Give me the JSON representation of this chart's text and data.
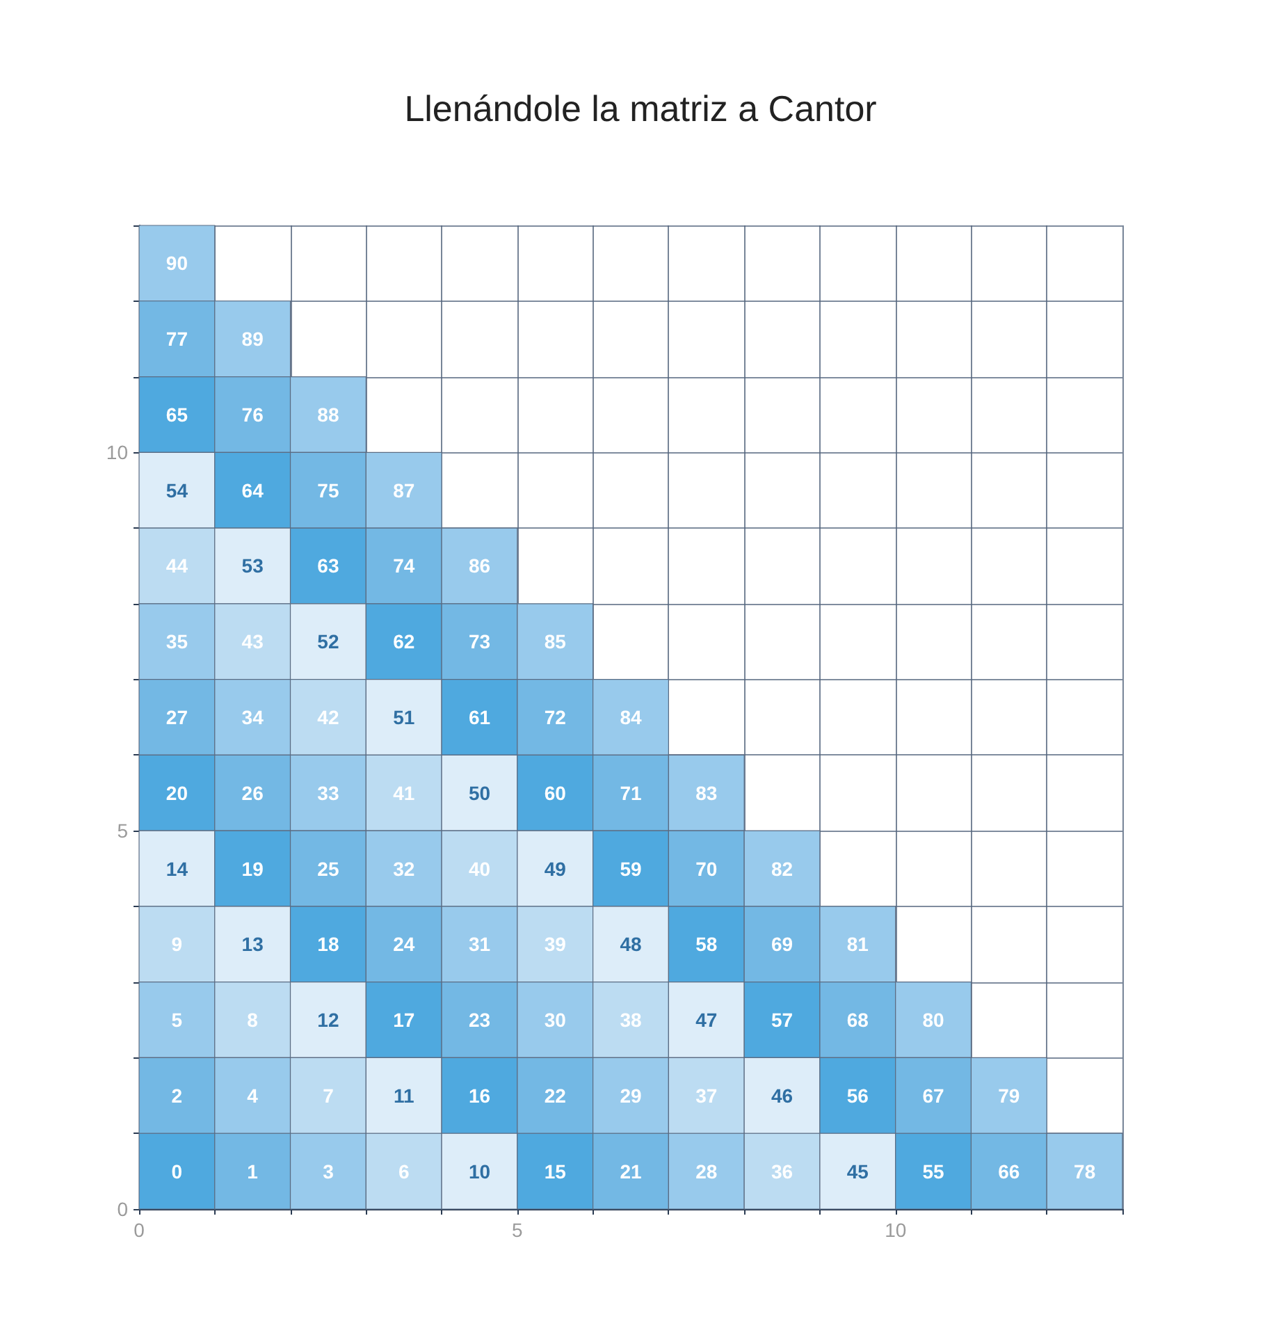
{
  "chart_data": {
    "type": "heatmap",
    "title": "Llenándole la matriz a Cantor",
    "xlim": [
      0,
      13
    ],
    "ylim": [
      0,
      13
    ],
    "xticks": [
      0,
      {
        "value": 1,
        "label": null
      },
      {
        "value": 2,
        "label": null
      },
      {
        "value": 3,
        "label": null
      },
      {
        "value": 4,
        "label": null
      },
      5,
      {
        "value": 6,
        "label": null
      },
      {
        "value": 7,
        "label": null
      },
      {
        "value": 8,
        "label": null
      },
      {
        "value": 9,
        "label": null
      },
      10,
      {
        "value": 11,
        "label": null
      },
      {
        "value": 12,
        "label": null
      },
      {
        "value": 13,
        "label": null
      }
    ],
    "yticks": [
      0,
      {
        "value": 1,
        "label": null
      },
      {
        "value": 2,
        "label": null
      },
      {
        "value": 3,
        "label": null
      },
      {
        "value": 4,
        "label": null
      },
      5,
      {
        "value": 6,
        "label": null
      },
      {
        "value": 7,
        "label": null
      },
      {
        "value": 8,
        "label": null
      },
      {
        "value": 9,
        "label": null
      },
      10,
      {
        "value": 11,
        "label": null
      },
      {
        "value": 12,
        "label": null
      },
      {
        "value": 13,
        "label": null
      }
    ],
    "grid": true,
    "data_labels": true,
    "colors": [
      "#4fa9df",
      "#73b8e4",
      "#98caec",
      "#bcdcf2",
      "#ddedf9"
    ],
    "cells": [
      [
        90,
        null,
        null,
        null,
        null,
        null,
        null,
        null,
        null,
        null,
        null,
        null,
        null
      ],
      [
        77,
        89,
        null,
        null,
        null,
        null,
        null,
        null,
        null,
        null,
        null,
        null,
        null
      ],
      [
        65,
        76,
        88,
        null,
        null,
        null,
        null,
        null,
        null,
        null,
        null,
        null,
        null
      ],
      [
        54,
        64,
        75,
        87,
        null,
        null,
        null,
        null,
        null,
        null,
        null,
        null,
        null
      ],
      [
        44,
        53,
        63,
        74,
        86,
        null,
        null,
        null,
        null,
        null,
        null,
        null,
        null
      ],
      [
        35,
        43,
        52,
        62,
        73,
        85,
        null,
        null,
        null,
        null,
        null,
        null,
        null
      ],
      [
        27,
        34,
        42,
        51,
        61,
        72,
        84,
        null,
        null,
        null,
        null,
        null,
        null
      ],
      [
        20,
        26,
        33,
        41,
        50,
        60,
        71,
        83,
        null,
        null,
        null,
        null,
        null
      ],
      [
        14,
        19,
        25,
        32,
        40,
        49,
        59,
        70,
        82,
        null,
        null,
        null,
        null
      ],
      [
        9,
        13,
        18,
        24,
        31,
        39,
        48,
        58,
        69,
        81,
        null,
        null,
        null
      ],
      [
        5,
        8,
        12,
        17,
        23,
        30,
        38,
        47,
        57,
        68,
        80,
        null,
        null
      ],
      [
        2,
        4,
        7,
        11,
        16,
        22,
        29,
        37,
        46,
        56,
        67,
        79,
        null
      ],
      [
        0,
        1,
        3,
        6,
        10,
        15,
        21,
        28,
        36,
        45,
        55,
        66,
        78
      ]
    ]
  }
}
